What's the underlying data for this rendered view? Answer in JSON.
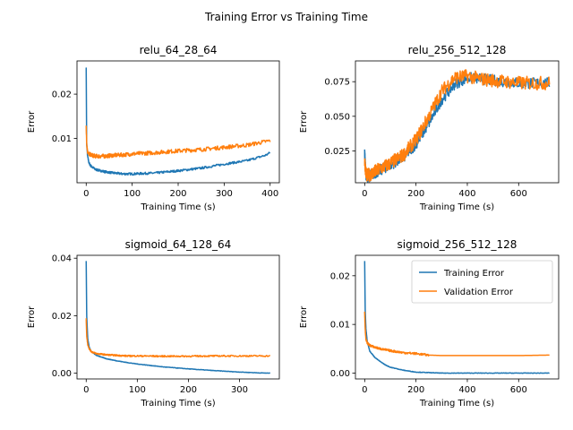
{
  "figure": {
    "title": "Training Error vs Training Time"
  },
  "colors": {
    "training": "#1f77b4",
    "validation": "#ff7f0e"
  },
  "legend": {
    "training": "Training Error",
    "validation": "Validation Error"
  },
  "chart_data": [
    {
      "type": "line",
      "title": "relu_64_28_64",
      "xlabel": "Training Time (s)",
      "ylabel": "Error",
      "xlim": [
        -20,
        420
      ],
      "ylim": [
        0.0,
        0.0275
      ],
      "xticks": [
        0,
        100,
        200,
        300,
        400
      ],
      "yticks": [
        0.01,
        0.02
      ],
      "ytick_labels": [
        "0.01",
        "0.02"
      ],
      "legend": null,
      "series": [
        {
          "key": "training",
          "x": [
            0,
            1,
            3,
            6,
            10,
            20,
            40,
            60,
            80,
            100,
            150,
            200,
            250,
            300,
            350,
            390,
            400
          ],
          "y": [
            0.026,
            0.009,
            0.006,
            0.0045,
            0.0038,
            0.003,
            0.0025,
            0.0022,
            0.002,
            0.002,
            0.0022,
            0.0027,
            0.0033,
            0.0042,
            0.005,
            0.0062,
            0.0068
          ],
          "noise": 0.00025
        },
        {
          "key": "validation",
          "x": [
            0,
            1,
            3,
            6,
            10,
            20,
            40,
            60,
            80,
            100,
            150,
            200,
            250,
            300,
            350,
            390,
            400
          ],
          "y": [
            0.0128,
            0.009,
            0.007,
            0.0065,
            0.0063,
            0.006,
            0.006,
            0.0062,
            0.0063,
            0.0065,
            0.0068,
            0.0072,
            0.0075,
            0.008,
            0.0085,
            0.0093,
            0.0095
          ],
          "noise": 0.00045
        }
      ]
    },
    {
      "type": "line",
      "title": "relu_256_512_128",
      "xlabel": "Training Time (s)",
      "ylabel": "Error",
      "xlim": [
        -36,
        756
      ],
      "ylim": [
        0.002,
        0.09
      ],
      "xticks": [
        0,
        200,
        400,
        600
      ],
      "yticks": [
        0.025,
        0.05,
        0.075
      ],
      "ytick_labels": [
        "0.025",
        "0.050",
        "0.075"
      ],
      "legend": null,
      "series": [
        {
          "key": "training",
          "x": [
            0,
            5,
            10,
            20,
            50,
            100,
            150,
            200,
            250,
            300,
            350,
            400,
            450,
            500,
            550,
            600,
            620,
            720
          ],
          "y": [
            0.023,
            0.008,
            0.006,
            0.007,
            0.01,
            0.015,
            0.02,
            0.03,
            0.045,
            0.062,
            0.073,
            0.078,
            0.077,
            0.076,
            0.075,
            0.074,
            0.074,
            0.074
          ],
          "noise": 0.004
        },
        {
          "key": "validation",
          "x": [
            0,
            5,
            10,
            20,
            50,
            100,
            150,
            200,
            250,
            300,
            350,
            400,
            450,
            500,
            550,
            600,
            620,
            720
          ],
          "y": [
            0.018,
            0.009,
            0.007,
            0.008,
            0.011,
            0.016,
            0.022,
            0.033,
            0.05,
            0.068,
            0.078,
            0.079,
            0.077,
            0.076,
            0.075,
            0.074,
            0.074,
            0.074
          ],
          "noise": 0.005
        }
      ]
    },
    {
      "type": "line",
      "title": "sigmoid_64_128_64",
      "xlabel": "Training Time (s)",
      "ylabel": "Error",
      "xlim": [
        -18,
        378
      ],
      "ylim": [
        -0.002,
        0.041
      ],
      "xticks": [
        0,
        100,
        200,
        300
      ],
      "yticks": [
        0.0,
        0.02,
        0.04
      ],
      "ytick_labels": [
        "0.00",
        "0.02",
        "0.04"
      ],
      "legend": null,
      "series": [
        {
          "key": "training",
          "x": [
            0,
            1,
            3,
            6,
            10,
            20,
            40,
            60,
            80,
            100,
            150,
            200,
            250,
            300,
            340,
            360
          ],
          "y": [
            0.039,
            0.02,
            0.012,
            0.009,
            0.0075,
            0.0062,
            0.005,
            0.0043,
            0.0037,
            0.0032,
            0.0022,
            0.0015,
            0.0009,
            0.0004,
            0.0001,
            0.0
          ],
          "noise": 8e-05
        },
        {
          "key": "validation",
          "x": [
            0,
            1,
            3,
            6,
            10,
            20,
            40,
            60,
            80,
            100,
            150,
            200,
            250,
            300,
            340,
            360
          ],
          "y": [
            0.019,
            0.013,
            0.01,
            0.0085,
            0.0075,
            0.0068,
            0.0064,
            0.0062,
            0.006,
            0.006,
            0.0059,
            0.0059,
            0.006,
            0.006,
            0.006,
            0.006
          ],
          "noise": 0.00025
        }
      ]
    },
    {
      "type": "line",
      "title": "sigmoid_256_512_128",
      "xlabel": "Training Time (s)",
      "ylabel": "Error",
      "xlim": [
        -36,
        756
      ],
      "ylim": [
        -0.0012,
        0.0242
      ],
      "xticks": [
        0,
        200,
        400,
        600
      ],
      "yticks": [
        0.0,
        0.01,
        0.02
      ],
      "ytick_labels": [
        "0.00",
        "0.01",
        "0.02"
      ],
      "legend": "top-right",
      "series": [
        {
          "key": "training",
          "x": [
            0,
            2,
            5,
            10,
            20,
            40,
            60,
            80,
            100,
            150,
            200,
            250,
            300,
            400,
            500,
            600,
            720
          ],
          "y": [
            0.023,
            0.013,
            0.009,
            0.0065,
            0.0045,
            0.0032,
            0.0024,
            0.0017,
            0.0012,
            0.0006,
            0.0002,
            0.0001,
            0.0,
            0.0,
            0.0,
            0.0,
            0.0
          ],
          "noise": 5e-05
        },
        {
          "key": "validation",
          "x": [
            0,
            2,
            5,
            10,
            20,
            40,
            60,
            80,
            100,
            150,
            200,
            250,
            300,
            400,
            500,
            600,
            720
          ],
          "y": [
            0.0125,
            0.009,
            0.007,
            0.0062,
            0.0057,
            0.0053,
            0.005,
            0.0048,
            0.0046,
            0.0042,
            0.004,
            0.0037,
            0.0036,
            0.0036,
            0.0036,
            0.0036,
            0.0037
          ],
          "noise": 0.00022,
          "noise_until": 250
        }
      ]
    }
  ]
}
